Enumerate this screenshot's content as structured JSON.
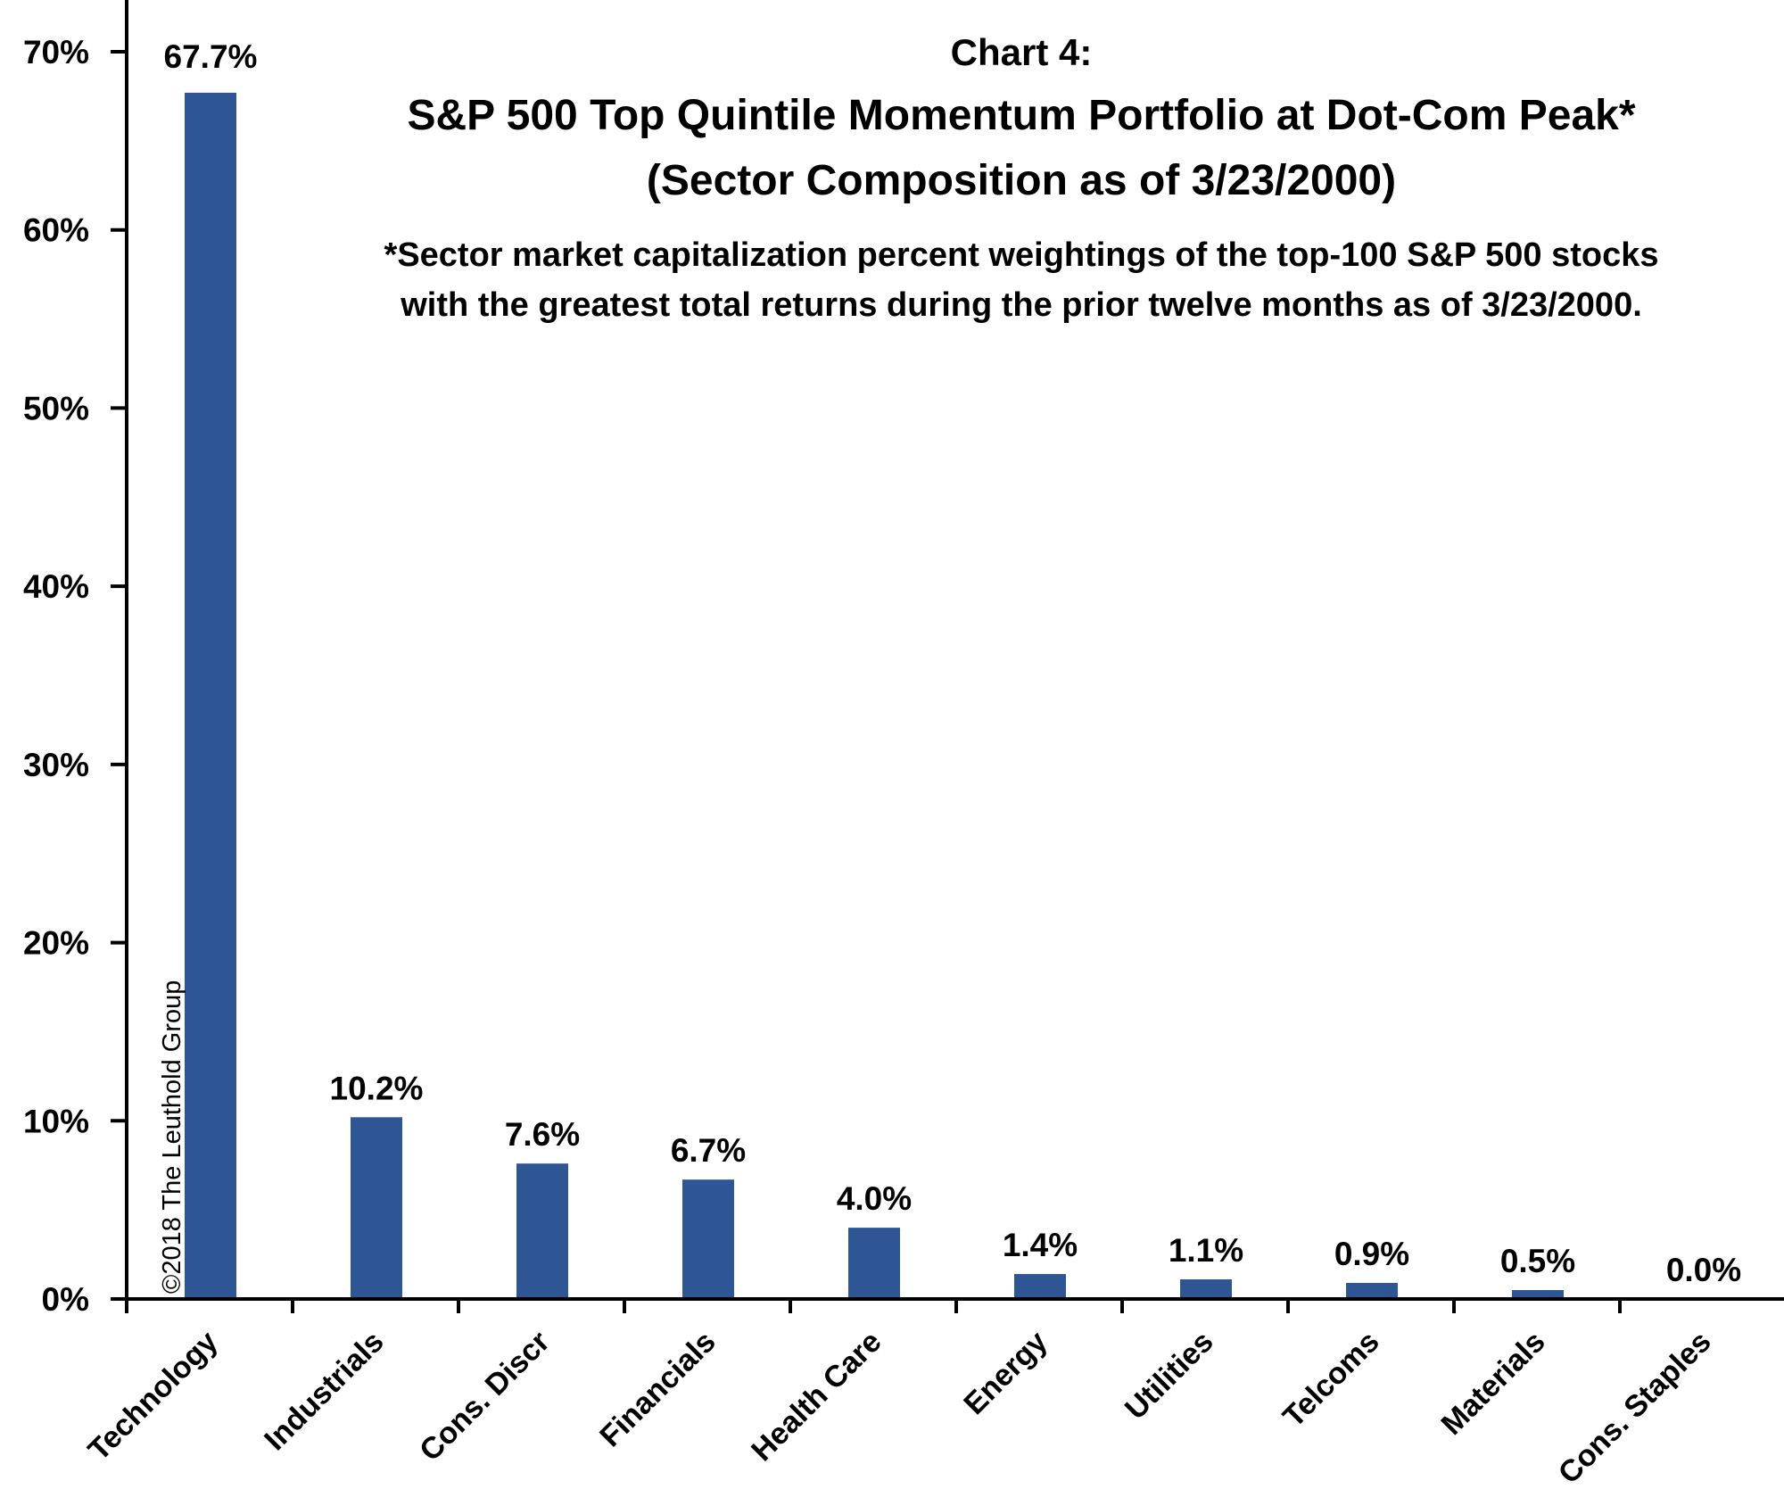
{
  "chart_data": {
    "type": "bar",
    "title": "Chart 4:",
    "subtitle": "S&P 500 Top Quintile Momentum Portfolio at Dot-Com Peak*",
    "subtitle2": "(Sector Composition as of 3/23/2000)",
    "note_line1": "*Sector market capitalization percent weightings of the top-100 S&P 500 stocks",
    "note_line2": "with the greatest total returns during the prior twelve months as of 3/23/2000.",
    "copyright": "©2018 The Leuthold Group",
    "categories": [
      "Technology",
      "Industrials",
      "Cons. Discr",
      "Financials",
      "Health Care",
      "Energy",
      "Utilities",
      "Telcoms",
      "Materials",
      "Cons. Staples"
    ],
    "values": [
      67.7,
      10.2,
      7.6,
      6.7,
      4.0,
      1.4,
      1.1,
      0.9,
      0.5,
      0.0
    ],
    "value_labels": [
      "67.7%",
      "10.2%",
      "7.6%",
      "6.7%",
      "4.0%",
      "1.4%",
      "1.1%",
      "0.9%",
      "0.5%",
      "0.0%"
    ],
    "y_ticks": [
      0,
      10,
      20,
      30,
      40,
      50,
      60,
      70
    ],
    "y_tick_labels": [
      "0%",
      "10%",
      "20%",
      "30%",
      "40%",
      "50%",
      "60%",
      "70%"
    ],
    "ylim": [
      0,
      70
    ],
    "xlabel": "",
    "ylabel": "",
    "grid": false,
    "bar_color": "#2e5694"
  }
}
